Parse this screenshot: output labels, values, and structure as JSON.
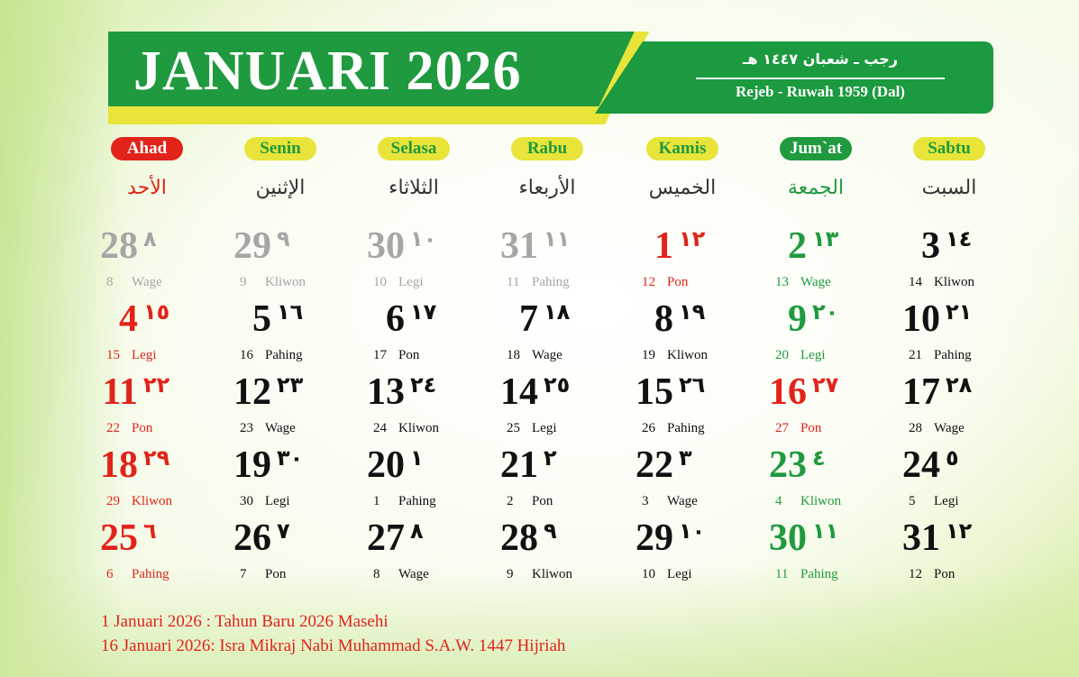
{
  "header": {
    "title": "JANUARI 2026",
    "hijri_months": "رجب ـ شعبان ١٤٤٧ هـ",
    "javanese_months": "Rejeb - Ruwah 1959 (Dal)"
  },
  "colors": {
    "green": "#1f9a3e",
    "yellow": "#e8e43a",
    "red": "#e2231a",
    "grey": "#a6a6a6",
    "black": "#111111"
  },
  "days": [
    {
      "label": "Ahad",
      "arabic": "الأحد",
      "style": "red"
    },
    {
      "label": "Senin",
      "arabic": "الإثنين",
      "style": "yellow"
    },
    {
      "label": "Selasa",
      "arabic": "الثلاثاء",
      "style": "yellow"
    },
    {
      "label": "Rabu",
      "arabic": "الأربعاء",
      "style": "yellow"
    },
    {
      "label": "Kamis",
      "arabic": "الخميس",
      "style": "yellow"
    },
    {
      "label": "Jum`at",
      "arabic": "الجمعة",
      "style": "green"
    },
    {
      "label": "Sabtu",
      "arabic": "السبت",
      "style": "yellow"
    }
  ],
  "weeks": [
    [
      {
        "date": "28",
        "hijri": "٨",
        "hijri_num": "8",
        "pasaran": "Wage",
        "color": "grey"
      },
      {
        "date": "29",
        "hijri": "٩",
        "hijri_num": "9",
        "pasaran": "Kliwon",
        "color": "grey"
      },
      {
        "date": "30",
        "hijri": "١٠",
        "hijri_num": "10",
        "pasaran": "Legi",
        "color": "grey"
      },
      {
        "date": "31",
        "hijri": "١١",
        "hijri_num": "11",
        "pasaran": "Pahing",
        "color": "grey"
      },
      {
        "date": "1",
        "hijri": "١٢",
        "hijri_num": "12",
        "pasaran": "Pon",
        "color": "red"
      },
      {
        "date": "2",
        "hijri": "١٣",
        "hijri_num": "13",
        "pasaran": "Wage",
        "color": "green"
      },
      {
        "date": "3",
        "hijri": "١٤",
        "hijri_num": "14",
        "pasaran": "Kliwon",
        "color": "black"
      }
    ],
    [
      {
        "date": "4",
        "hijri": "١٥",
        "hijri_num": "15",
        "pasaran": "Legi",
        "color": "red"
      },
      {
        "date": "5",
        "hijri": "١٦",
        "hijri_num": "16",
        "pasaran": "Pahing",
        "color": "black"
      },
      {
        "date": "6",
        "hijri": "١٧",
        "hijri_num": "17",
        "pasaran": "Pon",
        "color": "black"
      },
      {
        "date": "7",
        "hijri": "١٨",
        "hijri_num": "18",
        "pasaran": "Wage",
        "color": "black"
      },
      {
        "date": "8",
        "hijri": "١٩",
        "hijri_num": "19",
        "pasaran": "Kliwon",
        "color": "black"
      },
      {
        "date": "9",
        "hijri": "٢٠",
        "hijri_num": "20",
        "pasaran": "Legi",
        "color": "green"
      },
      {
        "date": "10",
        "hijri": "٢١",
        "hijri_num": "21",
        "pasaran": "Pahing",
        "color": "black"
      }
    ],
    [
      {
        "date": "11",
        "hijri": "٢٢",
        "hijri_num": "22",
        "pasaran": "Pon",
        "color": "red"
      },
      {
        "date": "12",
        "hijri": "٢٣",
        "hijri_num": "23",
        "pasaran": "Wage",
        "color": "black"
      },
      {
        "date": "13",
        "hijri": "٢٤",
        "hijri_num": "24",
        "pasaran": "Kliwon",
        "color": "black"
      },
      {
        "date": "14",
        "hijri": "٢٥",
        "hijri_num": "25",
        "pasaran": "Legi",
        "color": "black"
      },
      {
        "date": "15",
        "hijri": "٢٦",
        "hijri_num": "26",
        "pasaran": "Pahing",
        "color": "black"
      },
      {
        "date": "16",
        "hijri": "٢٧",
        "hijri_num": "27",
        "pasaran": "Pon",
        "color": "red"
      },
      {
        "date": "17",
        "hijri": "٢٨",
        "hijri_num": "28",
        "pasaran": "Wage",
        "color": "black"
      }
    ],
    [
      {
        "date": "18",
        "hijri": "٢٩",
        "hijri_num": "29",
        "pasaran": "Kliwon",
        "color": "red"
      },
      {
        "date": "19",
        "hijri": "٣٠",
        "hijri_num": "30",
        "pasaran": "Legi",
        "color": "black"
      },
      {
        "date": "20",
        "hijri": "١",
        "hijri_num": "1",
        "pasaran": "Pahing",
        "color": "black"
      },
      {
        "date": "21",
        "hijri": "٢",
        "hijri_num": "2",
        "pasaran": "Pon",
        "color": "black"
      },
      {
        "date": "22",
        "hijri": "٣",
        "hijri_num": "3",
        "pasaran": "Wage",
        "color": "black"
      },
      {
        "date": "23",
        "hijri": "٤",
        "hijri_num": "4",
        "pasaran": "Kliwon",
        "color": "green"
      },
      {
        "date": "24",
        "hijri": "٥",
        "hijri_num": "5",
        "pasaran": "Legi",
        "color": "black"
      }
    ],
    [
      {
        "date": "25",
        "hijri": "٦",
        "hijri_num": "6",
        "pasaran": "Pahing",
        "color": "red"
      },
      {
        "date": "26",
        "hijri": "٧",
        "hijri_num": "7",
        "pasaran": "Pon",
        "color": "black"
      },
      {
        "date": "27",
        "hijri": "٨",
        "hijri_num": "8",
        "pasaran": "Wage",
        "color": "black"
      },
      {
        "date": "28",
        "hijri": "٩",
        "hijri_num": "9",
        "pasaran": "Kliwon",
        "color": "black"
      },
      {
        "date": "29",
        "hijri": "١٠",
        "hijri_num": "10",
        "pasaran": "Legi",
        "color": "black"
      },
      {
        "date": "30",
        "hijri": "١١",
        "hijri_num": "11",
        "pasaran": "Pahing",
        "color": "green"
      },
      {
        "date": "31",
        "hijri": "١٢",
        "hijri_num": "12",
        "pasaran": "Pon",
        "color": "black"
      }
    ]
  ],
  "notes": [
    "1 Januari 2026 : Tahun Baru 2026 Masehi",
    "16 Januari 2026: Isra Mikraj Nabi Muhammad S.A.W. 1447 Hijriah"
  ]
}
